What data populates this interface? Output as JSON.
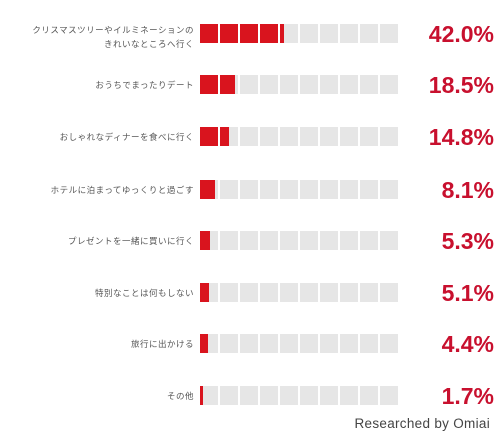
{
  "chart_data": {
    "type": "bar",
    "categories": [
      [
        "クリスマスツリーやイルミネーションの",
        "きれいなところへ行く"
      ],
      [
        "おうちでまったりデート"
      ],
      [
        "おしゃれなディナーを食べに行く"
      ],
      [
        "ホテルに泊まってゆっくりと過ごす"
      ],
      [
        "プレゼントを一緒に買いに行く"
      ],
      [
        "特別なことは何もしない"
      ],
      [
        "旅行に出かける"
      ],
      [
        "その他"
      ]
    ],
    "values": [
      42.0,
      18.5,
      14.8,
      8.1,
      5.3,
      5.1,
      4.4,
      1.7
    ],
    "value_labels": [
      "42.0%",
      "18.5%",
      "14.8%",
      "8.1%",
      "5.3%",
      "5.1%",
      "4.4%",
      "1.7%"
    ],
    "xlim": [
      0,
      100
    ],
    "cells": 10,
    "unit": "%",
    "colors": {
      "bar": "#d9141e",
      "empty": "#e6e6e6",
      "value": "#c8102e"
    }
  },
  "footer": {
    "credit": "Researched by Omiai"
  }
}
